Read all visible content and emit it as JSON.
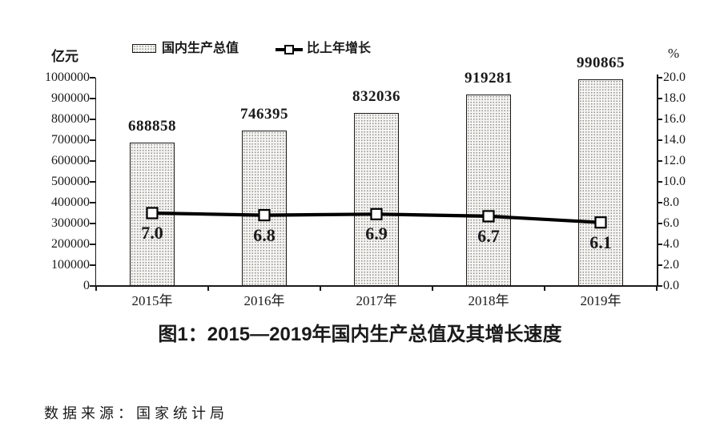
{
  "chart_data": {
    "type": "bar",
    "title": "图1：2015—2019年国内生产总值及其增长速度",
    "source": "数据来源：国家统计局",
    "categories": [
      "2015年",
      "2016年",
      "2017年",
      "2018年",
      "2019年"
    ],
    "series": [
      {
        "name": "国内生产总值",
        "kind": "bar",
        "axis": "left",
        "values": [
          688858,
          746395,
          832036,
          919281,
          990865
        ],
        "labels": [
          "688858",
          "746395",
          "832036",
          "919281",
          "990865"
        ]
      },
      {
        "name": "比上年增长",
        "kind": "line",
        "axis": "right",
        "values": [
          7.0,
          6.8,
          6.9,
          6.7,
          6.1
        ],
        "labels": [
          "7.0",
          "6.8",
          "6.9",
          "6.7",
          "6.1"
        ]
      }
    ],
    "left_axis": {
      "label": "亿元",
      "min": 0,
      "max": 1000000,
      "step": 100000
    },
    "right_axis": {
      "label": "%",
      "min": 0,
      "max": 20,
      "step": 2,
      "decimals": 1
    },
    "legend_position": "top",
    "grid": false
  },
  "colors": {
    "bar_fill": "#f5f4f1",
    "bar_dot": "#8f8f8f",
    "bar_border": "#1a1a1a",
    "line": "#000000",
    "marker_fill": "#ffffff",
    "text": "#1a1a1a"
  }
}
